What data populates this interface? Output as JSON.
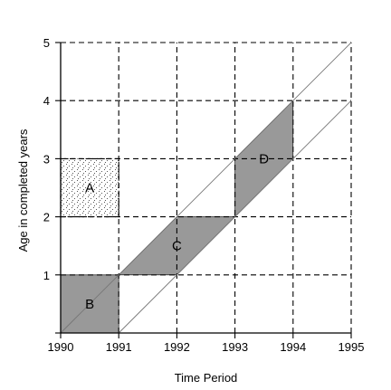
{
  "chart_data": {
    "type": "lexis-diagram",
    "xlabel": "Time Period",
    "ylabel": "Age in completed years",
    "xlim": [
      1990,
      1995
    ],
    "ylim": [
      0,
      5
    ],
    "x_ticks": [
      "1990",
      "1991",
      "1992",
      "1993",
      "1994",
      "1995"
    ],
    "y_ticks": [
      "1",
      "2",
      "3",
      "4",
      "5"
    ],
    "grid": "dashed",
    "diagonal_lines": [
      {
        "from": [
          1990,
          0
        ],
        "to": [
          1995,
          5
        ]
      },
      {
        "from": [
          1991,
          0
        ],
        "to": [
          1995,
          4
        ]
      }
    ],
    "regions": [
      {
        "label": "A",
        "fill": "dotted",
        "polygon": [
          [
            1990,
            2
          ],
          [
            1991,
            2
          ],
          [
            1991,
            3
          ],
          [
            1990,
            3
          ]
        ]
      },
      {
        "label": "B",
        "fill": "gray",
        "polygon": [
          [
            1990,
            0
          ],
          [
            1991,
            0
          ],
          [
            1991,
            1
          ],
          [
            1990,
            1
          ]
        ]
      },
      {
        "label": "C",
        "fill": "gray",
        "polygon": [
          [
            1991,
            1
          ],
          [
            1992,
            1
          ],
          [
            1993,
            2
          ],
          [
            1992,
            2
          ]
        ]
      },
      {
        "label": "D",
        "fill": "gray",
        "polygon": [
          [
            1993,
            2
          ],
          [
            1994,
            3
          ],
          [
            1994,
            4
          ],
          [
            1993,
            3
          ]
        ]
      }
    ]
  },
  "colors": {
    "shade": "#999999",
    "stipple": "#555555",
    "line": "#000000",
    "diagonal": "#777777"
  }
}
